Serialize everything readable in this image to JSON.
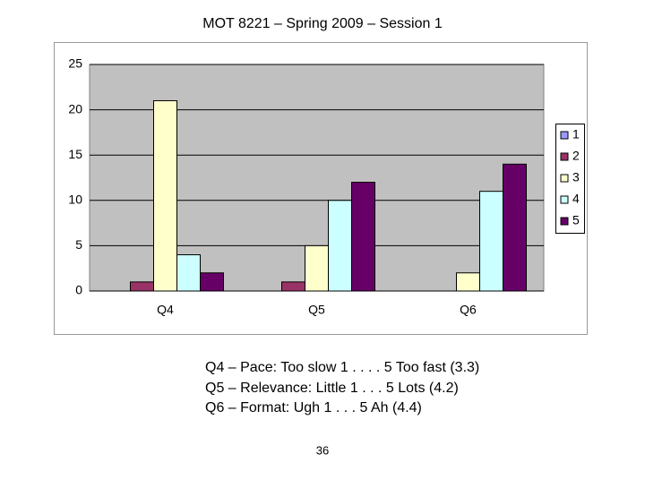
{
  "chart_data": {
    "type": "bar",
    "title": "MOT 8221 – Spring 2009 – Session 1",
    "categories": [
      "Q4",
      "Q5",
      "Q6"
    ],
    "series": [
      {
        "name": "1",
        "color": "#9999ff",
        "values": [
          0,
          0,
          0
        ]
      },
      {
        "name": "2",
        "color": "#993366",
        "values": [
          1,
          1,
          0
        ]
      },
      {
        "name": "3",
        "color": "#ffffcc",
        "values": [
          21,
          5,
          2
        ]
      },
      {
        "name": "4",
        "color": "#ccffff",
        "values": [
          4,
          10,
          11
        ]
      },
      {
        "name": "5",
        "color": "#660066",
        "values": [
          2,
          12,
          14
        ]
      }
    ],
    "ylim": [
      0,
      25
    ],
    "yticks": [
      0,
      5,
      10,
      15,
      20,
      25
    ],
    "grid": true,
    "legend": "right"
  },
  "notes": [
    "Q4 – Pace: Too slow 1 . . . . 5 Too fast (3.3)",
    "Q5 – Relevance: Little 1 . . . 5 Lots (4.2)",
    "Q6 – Format: Ugh 1 . . . 5 Ah (4.4)"
  ],
  "page_number": "36"
}
